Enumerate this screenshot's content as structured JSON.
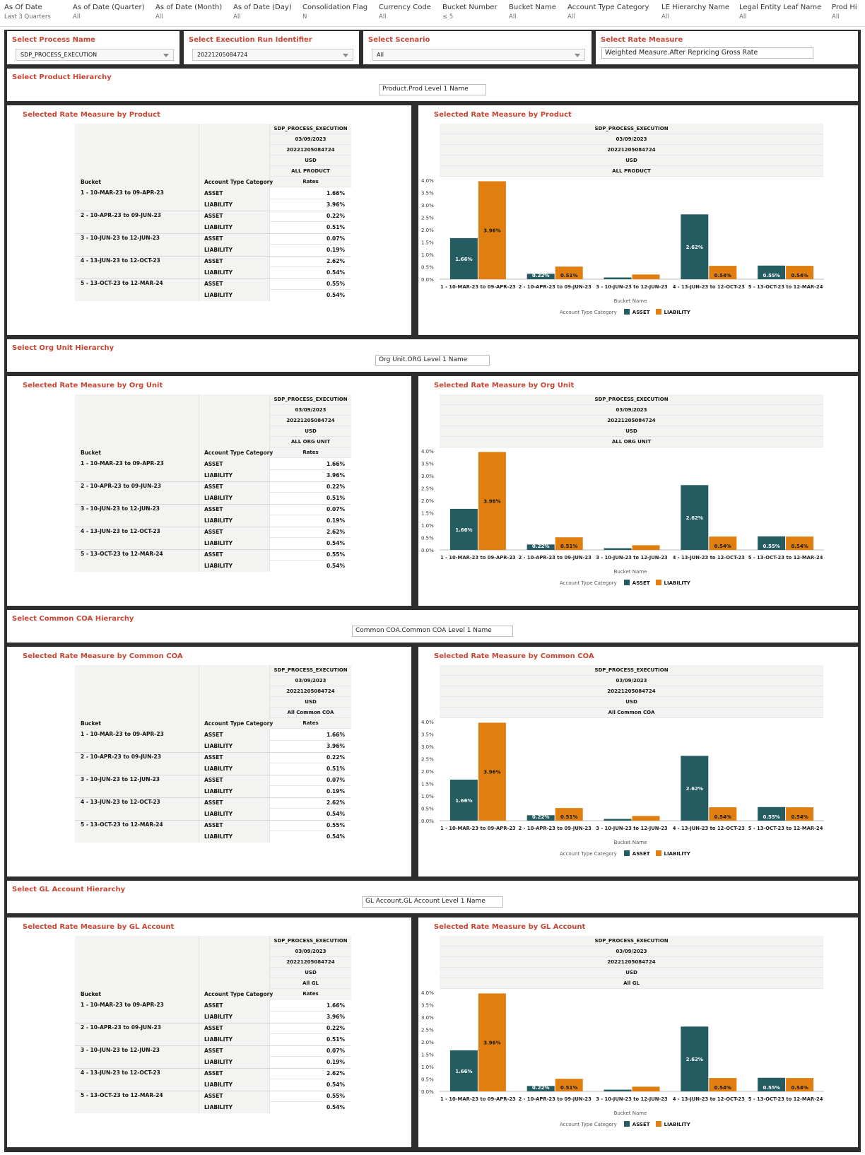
{
  "filters": [
    {
      "label": "As Of Date",
      "value": "Last 3 Quarters"
    },
    {
      "label": "As of Date (Quarter)",
      "value": "All"
    },
    {
      "label": "As of Date (Month)",
      "value": "All"
    },
    {
      "label": "As of Date (Day)",
      "value": "All"
    },
    {
      "label": "Consolidation Flag",
      "value": "N"
    },
    {
      "label": "Currency Code",
      "value": "All"
    },
    {
      "label": "Bucket Number",
      "value": "≤ 5"
    },
    {
      "label": "Bucket Name",
      "value": "All"
    },
    {
      "label": "Account Type Category",
      "value": "All"
    },
    {
      "label": "LE Hierarchy Name",
      "value": "All"
    },
    {
      "label": "Legal Entity Leaf Name",
      "value": "All"
    },
    {
      "label": "Prod Hi",
      "value": "All"
    }
  ],
  "selectors": {
    "process": {
      "title": "Select Process Name",
      "value": "SDP_PROCESS_EXECUTION"
    },
    "run": {
      "title": "Select Execution Run Identifier",
      "value": "20221205084724"
    },
    "scenario": {
      "title": "Select Scenario",
      "value": "All"
    },
    "rate": {
      "title": "Select Rate Measure",
      "value": "Weighted Measure.After Repricing Gross Rate"
    }
  },
  "colors": {
    "asset": "#255c62",
    "liability": "#e07f10",
    "accent": "#c74634"
  },
  "sections": [
    {
      "hier_title": "Select Product Hierarchy",
      "hier_value": "Product.Prod Level 1 Name",
      "table_title": "Selected Rate Measure by Product",
      "chart_title": "Selected Rate Measure by Product",
      "headers": [
        "SDP_PROCESS_EXECUTION",
        "03/09/2023",
        "20221205084724",
        "USD",
        "ALL PRODUCT"
      ]
    },
    {
      "hier_title": "Select Org Unit Hierarchy",
      "hier_value": "Org Unit.ORG Level 1 Name",
      "table_title": "Selected Rate Measure by Org Unit",
      "chart_title": "Selected Rate Measure by Org Unit",
      "headers": [
        "SDP_PROCESS_EXECUTION",
        "03/09/2023",
        "20221205084724",
        "USD",
        "ALL ORG UNIT"
      ]
    },
    {
      "hier_title": "Select Common COA Hierarchy",
      "hier_value": "Common COA.Common COA Level 1 Name",
      "table_title": "Selected Rate Measure by Common COA",
      "chart_title": "Selected Rate Measure by Common COA",
      "headers": [
        "SDP_PROCESS_EXECUTION",
        "03/09/2023",
        "20221205084724",
        "USD",
        "All Common COA"
      ]
    },
    {
      "hier_title": "Select GL Account Hierarchy",
      "hier_value": "GL Account.GL Account Level 1 Name",
      "table_title": "Selected Rate Measure by GL Account",
      "chart_title": "Selected Rate Measure by GL Account",
      "headers": [
        "SDP_PROCESS_EXECUTION",
        "03/09/2023",
        "20221205084724",
        "USD",
        "All GL"
      ]
    }
  ],
  "table_labels": {
    "bucket": "Bucket",
    "account_type": "Account Type Category",
    "rates": "Rates"
  },
  "rows": [
    {
      "bucket": "1 - 10-MAR-23 to 09-APR-23",
      "asset": "1.66%",
      "liability": "3.96%"
    },
    {
      "bucket": "2 - 10-APR-23 to 09-JUN-23",
      "asset": "0.22%",
      "liability": "0.51%"
    },
    {
      "bucket": "3 - 10-JUN-23 to 12-JUN-23",
      "asset": "0.07%",
      "liability": "0.19%"
    },
    {
      "bucket": "4 - 13-JUN-23 to 12-OCT-23",
      "asset": "2.62%",
      "liability": "0.54%"
    },
    {
      "bucket": "5 - 13-OCT-23 to 12-MAR-24",
      "asset": "0.55%",
      "liability": "0.54%"
    }
  ],
  "legend": {
    "title": "Account Type Category",
    "asset": "ASSET",
    "liability": "LIABILITY"
  },
  "chart_data": {
    "type": "bar",
    "xlabel": "Bucket Name",
    "categories": [
      "1 - 10-MAR-23 to 09-APR-23",
      "2 - 10-APR-23 to 09-JUN-23",
      "3 - 10-JUN-23 to 12-JUN-23",
      "4 - 13-JUN-23 to 12-OCT-23",
      "5 - 13-OCT-23 to 12-MAR-24"
    ],
    "series": [
      {
        "name": "ASSET",
        "values": [
          1.66,
          0.22,
          0.07,
          2.62,
          0.55
        ]
      },
      {
        "name": "LIABILITY",
        "values": [
          3.96,
          0.51,
          0.19,
          0.54,
          0.54
        ]
      }
    ],
    "value_labels": {
      "ASSET": [
        "1.66%",
        "0.22%",
        "",
        "2.62%",
        "0.55%"
      ],
      "LIABILITY": [
        "3.96%",
        "0.51%",
        "",
        "0.54%",
        "0.54%"
      ]
    },
    "yticks": [
      "0.0%",
      "0.5%",
      "1.0%",
      "1.5%",
      "2.0%",
      "2.5%",
      "3.0%",
      "3.5%",
      "4.0%"
    ],
    "ylim": [
      0,
      4
    ]
  }
}
